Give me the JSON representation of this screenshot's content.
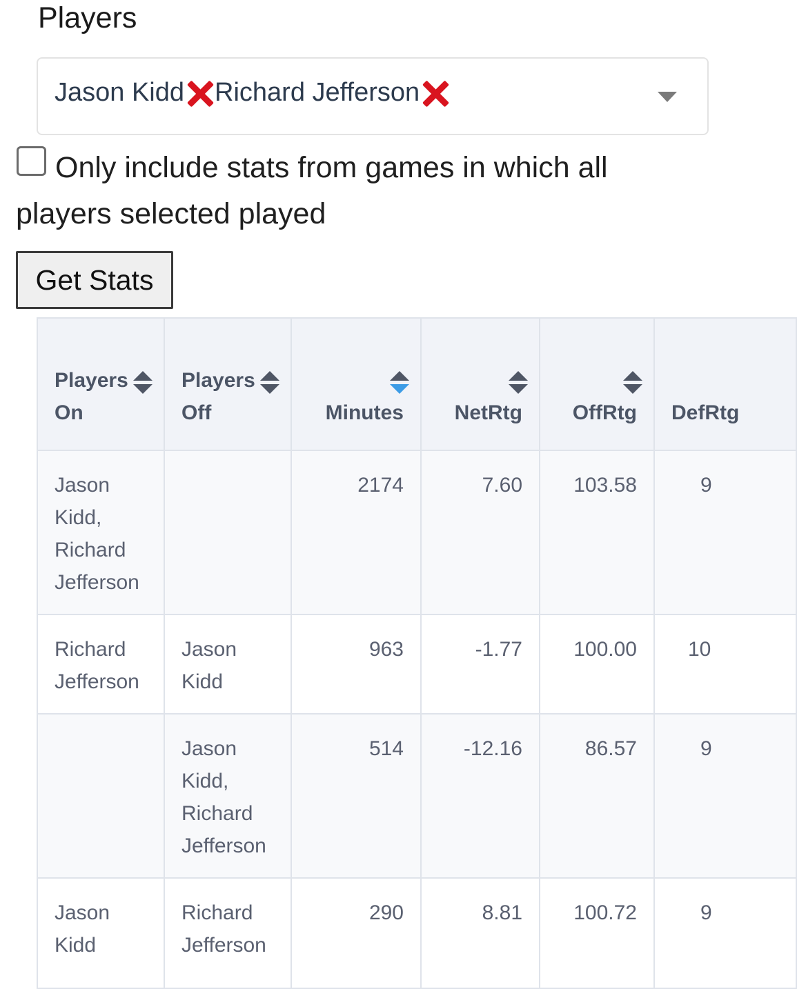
{
  "section_title": "Players",
  "select": {
    "chips": [
      {
        "label": "Jason Kidd"
      },
      {
        "label": "Richard Jefferson"
      }
    ]
  },
  "filter": {
    "checked": false,
    "label": "Only include stats from games in which all players selected played"
  },
  "get_stats_label": "Get Stats",
  "table": {
    "columns": {
      "players_on": "Players On",
      "players_off": "Players Off",
      "minutes": "Minutes",
      "netrtg": "NetRtg",
      "offrtg": "OffRtg",
      "defrtg": "DefRtg"
    },
    "sorted_column": "minutes",
    "sort_direction": "descending",
    "rows": [
      {
        "players_on": "Jason Kidd, Richard Jefferson",
        "players_off": "",
        "minutes": "2174",
        "netrtg": "7.60",
        "offrtg": "103.58",
        "defrtg_visible": "9"
      },
      {
        "players_on": "Richard Jefferson",
        "players_off": "Jason Kidd",
        "minutes": "963",
        "netrtg": "-1.77",
        "offrtg": "100.00",
        "defrtg_visible": "10"
      },
      {
        "players_on": "",
        "players_off": "Jason Kidd, Richard Jefferson",
        "minutes": "514",
        "netrtg": "-12.16",
        "offrtg": "86.57",
        "defrtg_visible": "9"
      },
      {
        "players_on": "Jason Kidd",
        "players_off": "Richard Jefferson",
        "minutes": "290",
        "netrtg": "8.81",
        "offrtg": "100.72",
        "defrtg_visible": "9"
      }
    ]
  },
  "colors": {
    "chip_text": "#2d3b4e",
    "chip_remove": "#d9141f",
    "active_sort": "#3d9ce6",
    "header_bg": "#f1f3f8",
    "cell_text": "#5a6070"
  }
}
